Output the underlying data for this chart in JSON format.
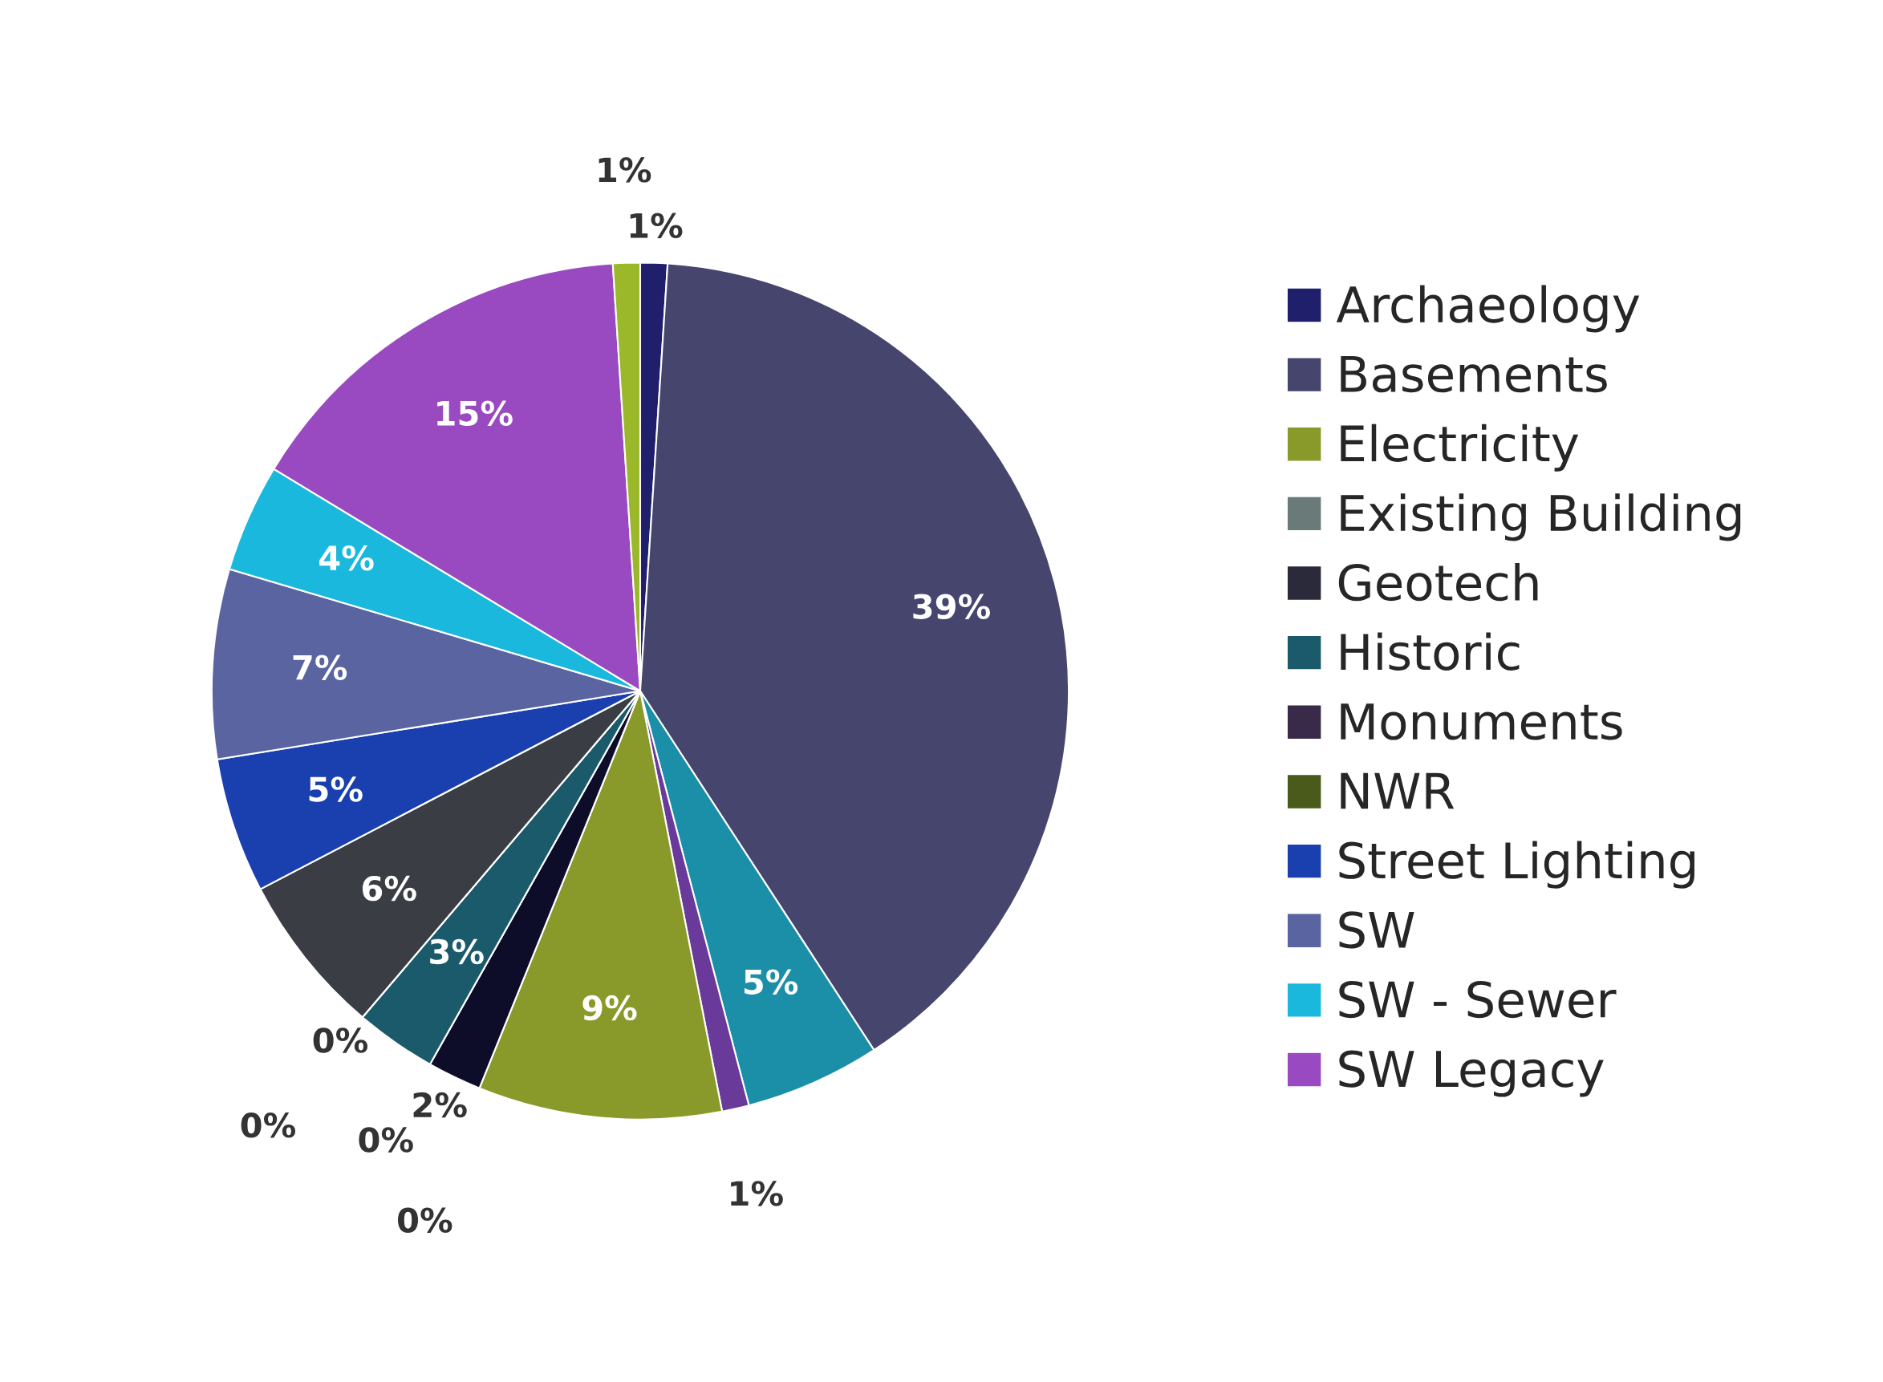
{
  "chart_data": {
    "type": "pie",
    "categories": [
      "Archaeology",
      "Basements",
      null,
      null,
      "Electricity",
      "Existing Building",
      null,
      "Geotech",
      "Historic",
      "Monuments",
      "NWR",
      null,
      "Street Lighting",
      "SW",
      "SW - Sewer",
      "SW Legacy",
      null
    ],
    "values": [
      1,
      39,
      5,
      1,
      9,
      0,
      2,
      0,
      3,
      0,
      0,
      6,
      5,
      7,
      4,
      15,
      1
    ],
    "colors": [
      "#1f1f6b",
      "#45456e",
      "#1b8fa8",
      "#6a3a9a",
      "#8a9a2a",
      "#6a7a78",
      "#0d0d2a",
      "#2a2a3a",
      "#1a5a6a",
      "#3a2a4a",
      "#4a5a1a",
      "#3a3e44",
      "#1a3fae",
      "#5a64a0",
      "#1ab8dc",
      "#9a4ac0",
      "#9ab82a"
    ],
    "value_labels": [
      "1%",
      "39%",
      "5%",
      "1%",
      "9%",
      "0%",
      "2%",
      "0%",
      "3%",
      "0%",
      "0%",
      "6%",
      "5%",
      "7%",
      "4%",
      "15%",
      "1%"
    ],
    "legend": "right"
  }
}
